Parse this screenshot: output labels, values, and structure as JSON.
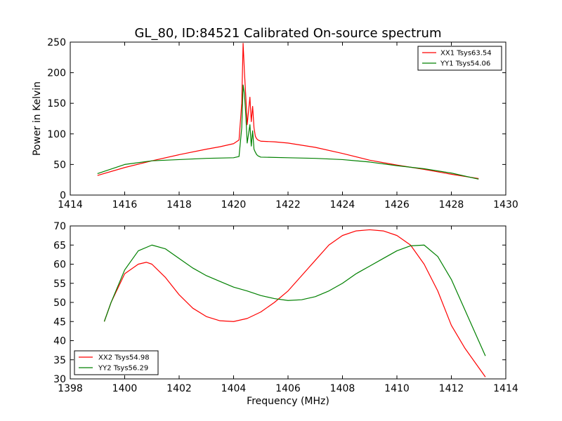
{
  "chart_data": [
    {
      "type": "line",
      "title": "GL_80, ID:84521 Calibrated On-source spectrum",
      "xlabel": "",
      "ylabel": "Power in Kelvin",
      "xlim": [
        1414,
        1430
      ],
      "ylim": [
        0,
        250
      ],
      "xticks": [
        "1414",
        "1416",
        "1418",
        "1420",
        "1422",
        "1424",
        "1426",
        "1428",
        "1430"
      ],
      "yticks": [
        "0",
        "50",
        "100",
        "150",
        "200",
        "250"
      ],
      "grid": false,
      "legend_position": "top-right",
      "series": [
        {
          "name": "XX1 Tsys63.54",
          "color": "#ff0000",
          "x": [
            1415.0,
            1416.0,
            1417.0,
            1418.0,
            1419.0,
            1419.5,
            1420.0,
            1420.2,
            1420.3,
            1420.35,
            1420.4,
            1420.45,
            1420.5,
            1420.6,
            1420.65,
            1420.7,
            1420.75,
            1420.8,
            1420.85,
            1420.9,
            1421.0,
            1421.5,
            1422.0,
            1423.0,
            1424.0,
            1425.0,
            1426.0,
            1427.0,
            1428.0,
            1429.0
          ],
          "y": [
            32,
            45,
            56,
            66,
            75,
            79,
            84,
            90,
            150,
            248,
            200,
            160,
            115,
            160,
            120,
            145,
            110,
            96,
            92,
            90,
            88,
            87,
            85,
            78,
            68,
            57,
            49,
            42,
            34,
            27
          ]
        },
        {
          "name": "YY1 Tsys54.06",
          "color": "#008000",
          "x": [
            1415.0,
            1416.0,
            1417.0,
            1418.0,
            1419.0,
            1420.0,
            1420.2,
            1420.3,
            1420.35,
            1420.4,
            1420.45,
            1420.5,
            1420.6,
            1420.65,
            1420.7,
            1420.75,
            1420.8,
            1420.85,
            1420.9,
            1421.0,
            1422.0,
            1423.0,
            1424.0,
            1425.0,
            1426.0,
            1427.0,
            1428.0,
            1429.0
          ],
          "y": [
            35,
            50,
            56,
            58,
            60,
            61,
            63,
            110,
            180,
            165,
            130,
            85,
            115,
            80,
            105,
            75,
            70,
            66,
            64,
            62,
            61,
            60,
            58,
            54,
            48,
            43,
            36,
            26
          ]
        }
      ]
    },
    {
      "type": "line",
      "title": "",
      "xlabel": "Frequency (MHz)",
      "ylabel": "",
      "xlim": [
        1398,
        1414
      ],
      "ylim": [
        30,
        70
      ],
      "xticks": [
        "1398",
        "1400",
        "1402",
        "1404",
        "1406",
        "1408",
        "1410",
        "1412",
        "1414"
      ],
      "yticks": [
        "30",
        "35",
        "40",
        "45",
        "50",
        "55",
        "60",
        "65",
        "70"
      ],
      "grid": false,
      "legend_position": "bottom-left",
      "series": [
        {
          "name": "XX2 Tsys54.98",
          "color": "#ff0000",
          "x": [
            1399.25,
            1399.5,
            1400.0,
            1400.5,
            1400.8,
            1401.0,
            1401.5,
            1402.0,
            1402.5,
            1403.0,
            1403.5,
            1404.0,
            1404.5,
            1405.0,
            1405.5,
            1406.0,
            1406.5,
            1407.0,
            1407.5,
            1408.0,
            1408.5,
            1409.0,
            1409.5,
            1410.0,
            1410.5,
            1411.0,
            1411.5,
            1412.0,
            1412.5,
            1413.0,
            1413.25
          ],
          "y": [
            45,
            50,
            57.5,
            60,
            60.5,
            60,
            56.5,
            52,
            48.5,
            46.3,
            45.2,
            45,
            45.8,
            47.5,
            50,
            53,
            57,
            61,
            65,
            67.5,
            68.7,
            69,
            68.7,
            67.5,
            65,
            60,
            53,
            44,
            38,
            33,
            30.5
          ]
        },
        {
          "name": "YY2 Tsys56.29",
          "color": "#008000",
          "x": [
            1399.25,
            1399.5,
            1400.0,
            1400.5,
            1401.0,
            1401.5,
            1402.0,
            1402.5,
            1403.0,
            1403.5,
            1404.0,
            1404.5,
            1405.0,
            1405.5,
            1406.0,
            1406.5,
            1407.0,
            1407.5,
            1408.0,
            1408.5,
            1409.0,
            1409.5,
            1410.0,
            1410.5,
            1411.0,
            1411.5,
            1412.0,
            1412.5,
            1413.0,
            1413.25
          ],
          "y": [
            45,
            50,
            58.5,
            63.5,
            65,
            64,
            61.5,
            59,
            57,
            55.5,
            54,
            53,
            51.8,
            51,
            50.5,
            50.7,
            51.5,
            53,
            55,
            57.5,
            59.5,
            61.5,
            63.5,
            64.8,
            65,
            62,
            56,
            48,
            40,
            36
          ]
        }
      ]
    }
  ]
}
